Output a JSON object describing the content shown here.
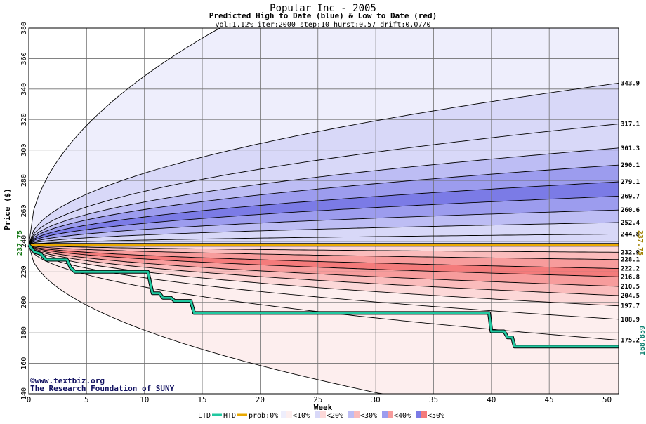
{
  "chart_data": {
    "type": "area",
    "title": "Popular Inc - 2005",
    "subtitle": "Predicted High to Date (blue) &  Low to Date (red)",
    "params": "vol:1.12% iter:2000 step:10 hurst:0.57 drift:0.07/0",
    "xlabel": "Week",
    "ylabel": "Price ($)",
    "xlim": [
      0,
      51
    ],
    "ylim": [
      140,
      380
    ],
    "xticks": [
      0,
      5,
      10,
      15,
      20,
      25,
      30,
      35,
      40,
      45,
      50
    ],
    "yticks": [
      140,
      160,
      180,
      200,
      220,
      240,
      260,
      280,
      300,
      320,
      340,
      360,
      380
    ],
    "grid": true,
    "start_price": 237.75,
    "start_label": "237.75",
    "current_label": "237.75",
    "current_price": 237.75,
    "ltd_label": "168.859",
    "ltd_value": 168.859,
    "colors": {
      "ltd": "#20c8a0",
      "htd": "#e8a800",
      "blue_10": "#eeeefc",
      "blue_20": "#d8d8f8",
      "blue_30": "#bdbdf4",
      "blue_40": "#9c9cee",
      "blue_50": "#7b7be6",
      "red_10": "#fdeeee",
      "red_20": "#fcd8d8",
      "red_30": "#fabcbc",
      "red_40": "#f79c9c",
      "red_50": "#f47b7b"
    },
    "upper_curves": [
      {
        "end": 380,
        "label": "",
        "cap": 16.5
      },
      {
        "end": 343.9,
        "label": "343.9"
      },
      {
        "end": 317.1,
        "label": "317.1"
      },
      {
        "end": 301.3,
        "label": "301.3"
      },
      {
        "end": 290.1,
        "label": "290.1"
      },
      {
        "end": 279.1,
        "label": "279.1"
      },
      {
        "end": 269.7,
        "label": "269.7"
      },
      {
        "end": 260.6,
        "label": "260.6"
      },
      {
        "end": 252.4,
        "label": "252.4"
      },
      {
        "end": 244.8,
        "label": "244.8"
      }
    ],
    "lower_curves": [
      {
        "end": 232.9,
        "label": "232.9"
      },
      {
        "end": 228.1,
        "label": "228.1"
      },
      {
        "end": 222.2,
        "label": "222.2"
      },
      {
        "end": 216.8,
        "label": "216.8"
      },
      {
        "end": 210.5,
        "label": "210.5"
      },
      {
        "end": 204.5,
        "label": "204.5"
      },
      {
        "end": 197.7,
        "label": "197.7"
      },
      {
        "end": 188.9,
        "label": "188.9"
      },
      {
        "end": 175.2,
        "label": "175.2"
      },
      {
        "end": 140,
        "label": "",
        "cap": 30.5
      }
    ],
    "ltd_path": [
      [
        0,
        237.75
      ],
      [
        0.5,
        233
      ],
      [
        1,
        232
      ],
      [
        1.5,
        228
      ],
      [
        3.3,
        228
      ],
      [
        3.6,
        223
      ],
      [
        4,
        220
      ],
      [
        10.3,
        220
      ],
      [
        10.7,
        206
      ],
      [
        11.3,
        206
      ],
      [
        11.6,
        203
      ],
      [
        12.3,
        203
      ],
      [
        12.6,
        201
      ],
      [
        14,
        201
      ],
      [
        14.3,
        193
      ],
      [
        39.8,
        193
      ],
      [
        40,
        181
      ],
      [
        41.1,
        181
      ],
      [
        41.4,
        177
      ],
      [
        41.8,
        177
      ],
      [
        42,
        171
      ],
      [
        51,
        171
      ]
    ],
    "htd_path": [
      [
        0,
        237.75
      ],
      [
        51,
        237.75
      ]
    ],
    "legend": {
      "ltd": "LTD",
      "htd": "HTD",
      "prob": "prob:0%",
      "items": [
        "<10%",
        "<20%",
        "<30%",
        "<40%",
        "<50%"
      ]
    },
    "watermark": [
      "©www.textbiz.org",
      "The Research Foundation of SUNY"
    ]
  }
}
